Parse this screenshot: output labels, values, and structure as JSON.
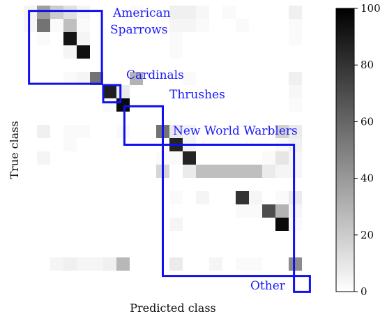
{
  "chart_data": {
    "type": "heatmap",
    "title": "",
    "xlabel": "Predicted class",
    "ylabel": "True class",
    "n_classes": 21,
    "colorbar": {
      "min": 0,
      "max": 100,
      "ticks": [
        "0",
        "20",
        "40",
        "60",
        "80",
        "100"
      ],
      "colormap": "white-to-black"
    },
    "values": [
      [
        4,
        38,
        20,
        12,
        4,
        0,
        0,
        0,
        2,
        0,
        0,
        6,
        6,
        3,
        0,
        2,
        0,
        0,
        0,
        0,
        6
      ],
      [
        3,
        55,
        2,
        25,
        2,
        0,
        0,
        0,
        0,
        0,
        0,
        4,
        4,
        2,
        0,
        0,
        2,
        0,
        0,
        0,
        2
      ],
      [
        0,
        2,
        0,
        92,
        4,
        0,
        0,
        0,
        0,
        0,
        0,
        2,
        0,
        0,
        0,
        0,
        0,
        0,
        0,
        0,
        2
      ],
      [
        0,
        0,
        0,
        4,
        94,
        0,
        0,
        0,
        0,
        0,
        0,
        2,
        0,
        0,
        0,
        0,
        0,
        0,
        0,
        0,
        0
      ],
      [
        0,
        0,
        0,
        2,
        4,
        55,
        0,
        0,
        30,
        0,
        0,
        0,
        2,
        0,
        0,
        0,
        0,
        0,
        0,
        0,
        6
      ],
      [
        0,
        0,
        0,
        0,
        0,
        0,
        88,
        8,
        0,
        0,
        0,
        0,
        0,
        0,
        0,
        0,
        0,
        0,
        0,
        0,
        3
      ],
      [
        0,
        0,
        0,
        0,
        0,
        0,
        2,
        96,
        0,
        0,
        0,
        0,
        0,
        0,
        0,
        0,
        0,
        0,
        0,
        0,
        2
      ],
      [
        0,
        6,
        0,
        2,
        2,
        0,
        0,
        2,
        0,
        0,
        55,
        8,
        4,
        0,
        0,
        0,
        0,
        0,
        0,
        18,
        8
      ],
      [
        0,
        0,
        0,
        2,
        0,
        0,
        0,
        0,
        0,
        0,
        0,
        86,
        4,
        0,
        0,
        0,
        0,
        0,
        0,
        2,
        6
      ],
      [
        0,
        4,
        0,
        0,
        0,
        0,
        0,
        0,
        0,
        0,
        2,
        2,
        86,
        0,
        0,
        0,
        0,
        0,
        2,
        10,
        4
      ],
      [
        0,
        0,
        0,
        0,
        0,
        0,
        0,
        0,
        0,
        0,
        16,
        0,
        8,
        25,
        25,
        25,
        25,
        25,
        8,
        4,
        4
      ],
      [
        0,
        0,
        0,
        0,
        0,
        0,
        0,
        0,
        0,
        0,
        0,
        2,
        0,
        4,
        0,
        0,
        80,
        4,
        0,
        2,
        8
      ],
      [
        0,
        0,
        0,
        0,
        0,
        0,
        0,
        0,
        0,
        0,
        0,
        0,
        0,
        0,
        0,
        0,
        2,
        2,
        70,
        30,
        4
      ],
      [
        0,
        0,
        0,
        0,
        0,
        0,
        0,
        0,
        0,
        0,
        0,
        4,
        0,
        0,
        0,
        0,
        0,
        0,
        0,
        96,
        2
      ],
      [
        0,
        0,
        4,
        6,
        4,
        4,
        6,
        28,
        0,
        0,
        0,
        8,
        0,
        0,
        4,
        0,
        2,
        2,
        0,
        0,
        45
      ]
    ],
    "row_ids": [
      0,
      1,
      2,
      3,
      5,
      6,
      7,
      9,
      10,
      11,
      12,
      14,
      15,
      16,
      19
    ],
    "full_row_values_note": "",
    "groups": [
      {
        "name": "American\nSparrows",
        "start": 0,
        "end": 5
      },
      {
        "name": "Cardinals",
        "start": 5,
        "end": 6
      },
      {
        "name": "Thrushes",
        "start": 6,
        "end": 8
      },
      {
        "name": "New World Warblers",
        "start": 8,
        "end": 18
      },
      {
        "name": "Other",
        "start": 18,
        "end": 19
      }
    ]
  },
  "group_labels": {
    "american": "American",
    "sparrows": "Sparrows",
    "cardinals": "Cardinals",
    "thrushes": "Thrushes",
    "warblers": "New World Warblers",
    "other": "Other"
  }
}
